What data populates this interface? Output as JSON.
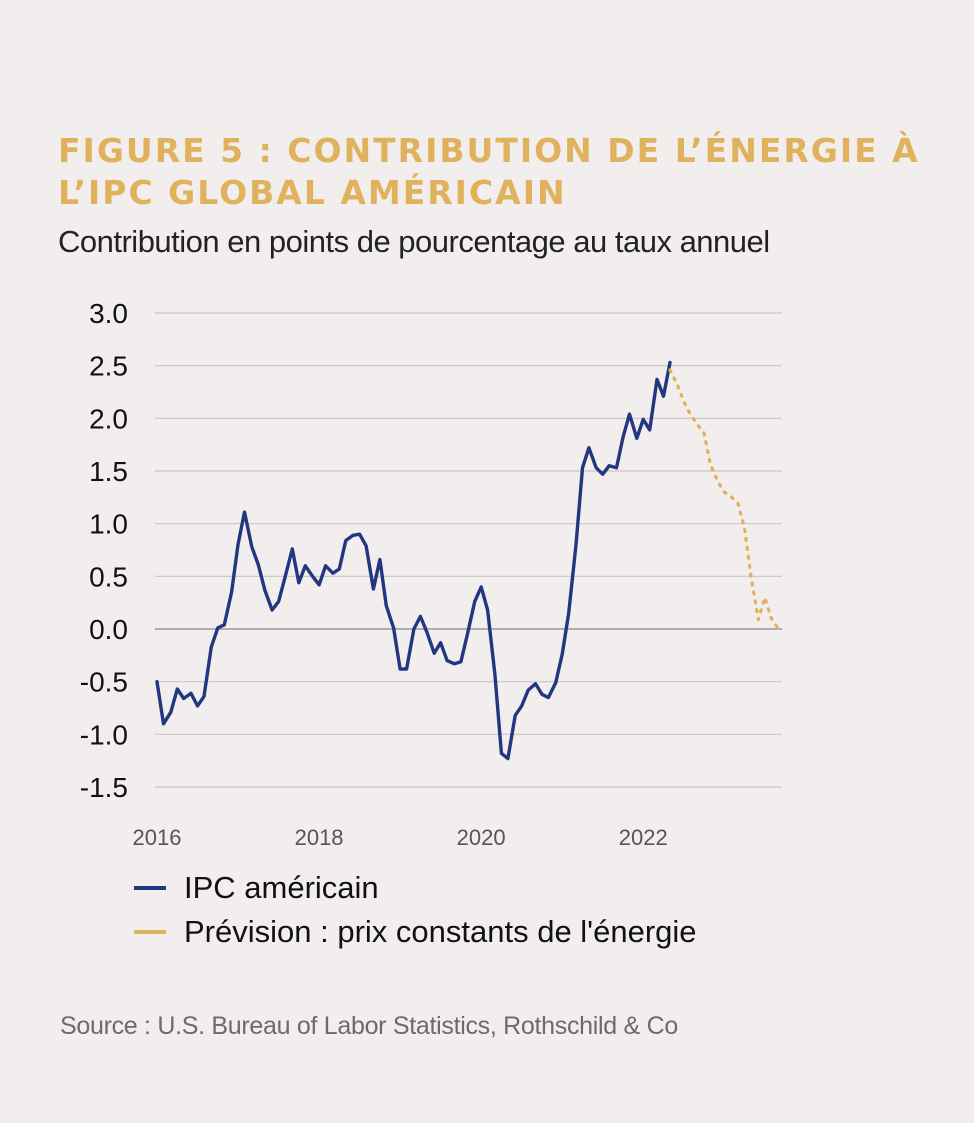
{
  "chart_data": {
    "type": "line",
    "title": "FIGURE 5 : CONTRIBUTION DE L’ÉNERGIE À L’IPC GLOBAL AMÉRICAIN",
    "subtitle": "Contribution en points de pourcentage au taux annuel",
    "xlabel": "",
    "ylabel": "",
    "xlim": [
      2016,
      2023.7
    ],
    "ylim": [
      -1.5,
      3.0
    ],
    "y_ticks": [
      "3.0",
      "2.5",
      "2.0",
      "1.5",
      "1.0",
      "0.5",
      "0.0",
      "-0.5",
      "-1.0",
      "-1.5"
    ],
    "x_ticks": [
      "2016",
      "2018",
      "2020",
      "2022"
    ],
    "grid": true,
    "legend_position": "bottom",
    "series": [
      {
        "name": "IPC américain",
        "color": "#233781",
        "style": "solid",
        "x": [
          2016.0,
          2016.08,
          2016.17,
          2016.25,
          2016.33,
          2016.42,
          2016.5,
          2016.58,
          2016.67,
          2016.75,
          2016.83,
          2016.92,
          2017.0,
          2017.08,
          2017.17,
          2017.25,
          2017.33,
          2017.42,
          2017.5,
          2017.58,
          2017.67,
          2017.75,
          2017.83,
          2017.92,
          2018.0,
          2018.08,
          2018.17,
          2018.25,
          2018.33,
          2018.42,
          2018.5,
          2018.58,
          2018.67,
          2018.75,
          2018.83,
          2018.92,
          2019.0,
          2019.08,
          2019.17,
          2019.25,
          2019.33,
          2019.42,
          2019.5,
          2019.58,
          2019.67,
          2019.75,
          2019.83,
          2019.92,
          2020.0,
          2020.08,
          2020.17,
          2020.25,
          2020.33,
          2020.42,
          2020.5,
          2020.58,
          2020.67,
          2020.75,
          2020.83,
          2020.92,
          2021.0,
          2021.08,
          2021.17,
          2021.25,
          2021.33,
          2021.42,
          2021.5,
          2021.58,
          2021.67,
          2021.75,
          2021.83,
          2021.92,
          2022.0,
          2022.08,
          2022.17,
          2022.25,
          2022.33
        ],
        "values": [
          -0.5,
          -0.9,
          -0.79,
          -0.57,
          -0.66,
          -0.61,
          -0.73,
          -0.64,
          -0.17,
          0.01,
          0.04,
          0.35,
          0.8,
          1.11,
          0.78,
          0.61,
          0.37,
          0.18,
          0.26,
          0.49,
          0.76,
          0.44,
          0.6,
          0.5,
          0.42,
          0.6,
          0.53,
          0.57,
          0.84,
          0.89,
          0.9,
          0.79,
          0.38,
          0.66,
          0.22,
          0.01,
          -0.38,
          -0.38,
          0.0,
          0.12,
          -0.03,
          -0.23,
          -0.13,
          -0.3,
          -0.33,
          -0.31,
          -0.05,
          0.26,
          0.4,
          0.18,
          -0.43,
          -1.18,
          -1.23,
          -0.82,
          -0.73,
          -0.58,
          -0.52,
          -0.62,
          -0.65,
          -0.51,
          -0.24,
          0.15,
          0.8,
          1.53,
          1.72,
          1.53,
          1.47,
          1.55,
          1.53,
          1.82,
          2.04,
          1.81,
          1.99,
          1.89,
          2.37,
          2.21,
          2.53
        ]
      },
      {
        "name": "Prévision : prix constants de l'énergie",
        "color": "#e0b25e",
        "style": "dotted",
        "x": [
          2022.33,
          2022.42,
          2022.5,
          2022.58,
          2022.67,
          2022.75,
          2022.83,
          2022.92,
          2023.0,
          2023.08,
          2023.17,
          2023.25,
          2023.33,
          2023.42,
          2023.5,
          2023.58,
          2023.67
        ],
        "values": [
          2.46,
          2.32,
          2.16,
          2.04,
          1.94,
          1.86,
          1.56,
          1.4,
          1.3,
          1.26,
          1.19,
          0.96,
          0.5,
          0.09,
          0.3,
          0.1,
          0.0
        ]
      }
    ]
  },
  "source": "Source : U.S. Bureau of Labor Statistics, Rothschild & Co"
}
